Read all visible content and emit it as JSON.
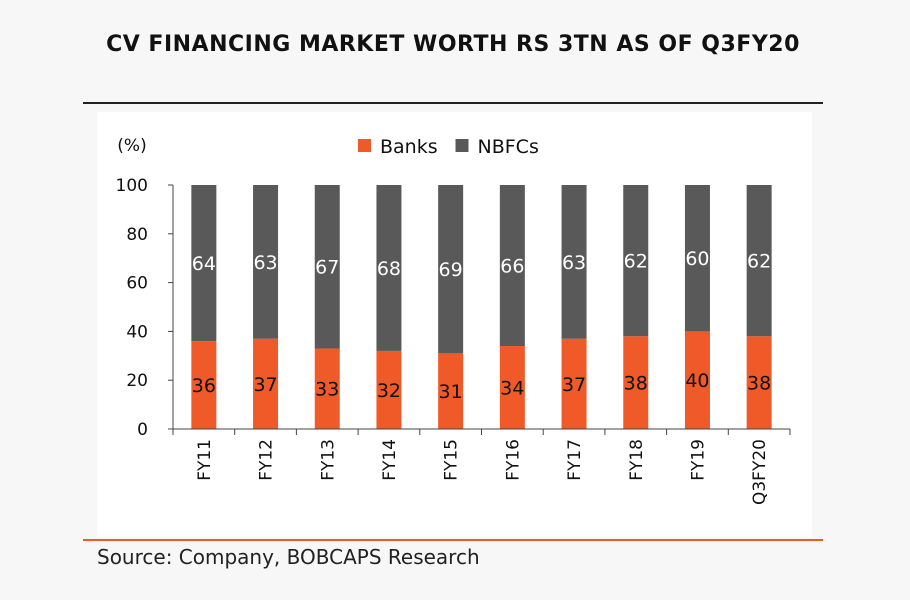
{
  "title": "CV FINANCING MARKET WORTH RS 3TN AS OF Q3FY20",
  "source": "Source: Company, BOBCAPS Research",
  "chart_data": {
    "type": "bar",
    "stacked": true,
    "ylabel": "(%)",
    "ylim": [
      0,
      100
    ],
    "yticks": [
      0,
      20,
      40,
      60,
      80,
      100
    ],
    "categories": [
      "FY11",
      "FY12",
      "FY13",
      "FY14",
      "FY15",
      "FY16",
      "FY17",
      "FY18",
      "FY19",
      "Q3FY20"
    ],
    "series": [
      {
        "name": "Banks",
        "color": "#f05a28",
        "label_color": "#111111",
        "values": [
          36,
          37,
          33,
          32,
          31,
          34,
          37,
          38,
          40,
          38
        ]
      },
      {
        "name": "NBFCs",
        "color": "#595959",
        "label_color": "#ffffff",
        "values": [
          64,
          63,
          67,
          68,
          69,
          66,
          63,
          62,
          60,
          62
        ]
      }
    ],
    "legend_position": "top-center",
    "grid": false
  }
}
